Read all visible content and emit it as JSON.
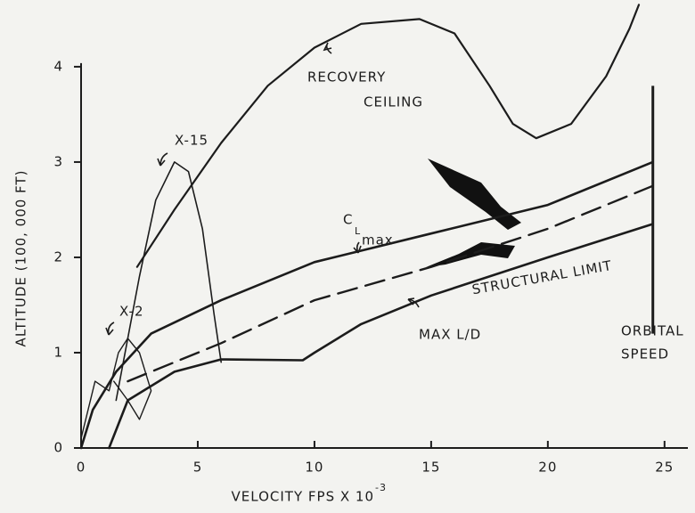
{
  "chart_data": {
    "type": "line",
    "xlabel": "VELOCITY FPS X 10",
    "xlabel_exponent": "-3",
    "ylabel": "ALTITUDE (100, 000 FT)",
    "xlim": [
      0,
      26
    ],
    "ylim": [
      0,
      4.7
    ],
    "xticks": [
      0,
      5,
      10,
      15,
      20,
      25
    ],
    "yticks": [
      0,
      1,
      2,
      3,
      4
    ],
    "grid": false,
    "series": [
      {
        "color": "#1c1c1c",
        "width": 2.2,
        "dash": false,
        "x": [
          2.4,
          4,
          6,
          8,
          10,
          12,
          14.5,
          16,
          17.5,
          18.5,
          19.5,
          21,
          22.5,
          23.5,
          23.9
        ],
        "values": [
          1.9,
          2.5,
          3.2,
          3.8,
          4.2,
          4.45,
          4.5,
          4.35,
          3.8,
          3.4,
          3.25,
          3.4,
          3.9,
          4.4,
          4.65
        ]
      },
      {
        "name": "X-15",
        "color": "#1c1c1c",
        "width": 1.6,
        "dash": false,
        "x": [
          1.5,
          2.5,
          3.2,
          4,
          4.6,
          5.2,
          5.7,
          6
        ],
        "values": [
          0.5,
          1.8,
          2.6,
          3.0,
          2.9,
          2.3,
          1.4,
          0.9
        ]
      },
      {
        "name": "X-2",
        "color": "#1c1c1c",
        "width": 1.4,
        "dash": false,
        "x": [
          0,
          0.6,
          1.2,
          1.6,
          2,
          2.5,
          3,
          2.5,
          2,
          1.4
        ],
        "values": [
          0.1,
          0.7,
          0.6,
          1.0,
          1.15,
          1.0,
          0.6,
          0.3,
          0.5,
          0.7
        ]
      },
      {
        "color": "#1c1c1c",
        "width": 2.6,
        "dash": false,
        "x": [
          0,
          0.5,
          1.5,
          3,
          6,
          10,
          15,
          20,
          24.5
        ],
        "values": [
          0,
          0.4,
          0.8,
          1.2,
          1.55,
          1.95,
          2.25,
          2.55,
          3.0
        ]
      },
      {
        "name": "MAX L/D",
        "color": "#1c1c1c",
        "width": 2.4,
        "dash": true,
        "x": [
          2,
          4,
          6,
          10,
          15,
          20,
          24.5
        ],
        "values": [
          0.7,
          0.9,
          1.1,
          1.55,
          1.9,
          2.3,
          2.75
        ]
      },
      {
        "name": "STRUCTURAL LIMIT",
        "color": "#1c1c1c",
        "width": 2.6,
        "dash": false,
        "x": [
          1.2,
          2,
          4,
          6,
          9.5,
          10,
          12,
          15,
          20,
          24.5
        ],
        "values": [
          0,
          0.5,
          0.8,
          0.93,
          0.92,
          1.0,
          1.3,
          1.6,
          2.0,
          2.35
        ]
      }
    ],
    "orbital_speed": {
      "x": 24.5,
      "ylim": [
        1.2,
        3.8
      ]
    },
    "annotations": [
      "RECOVERY",
      "CEILING",
      "C",
      "L",
      "max",
      "ORBITAL",
      "SPEED"
    ]
  }
}
